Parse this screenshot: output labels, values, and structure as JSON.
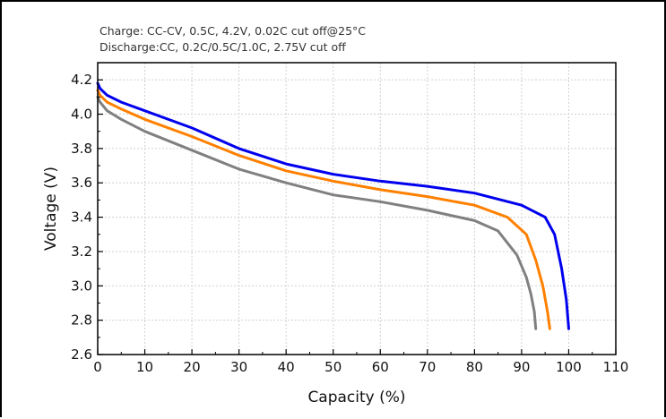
{
  "chart_data": {
    "type": "line",
    "annotations": [
      "Charge: CC-CV, 0.5C, 4.2V, 0.02C cut off@25°C",
      "Discharge:CC, 0.2C/0.5C/1.0C, 2.75V cut off"
    ],
    "xlabel": "Capacity (%)",
    "ylabel": "Voltage (V)",
    "xlim": [
      0,
      110
    ],
    "ylim": [
      2.6,
      4.3
    ],
    "xticks": [
      "0",
      "10",
      "20",
      "30",
      "40",
      "50",
      "60",
      "70",
      "80",
      "90",
      "100",
      "110"
    ],
    "yticks": [
      "2.6",
      "2.8",
      "3.0",
      "3.2",
      "3.4",
      "3.6",
      "3.8",
      "4.0",
      "4.2"
    ],
    "grid": true,
    "series": [
      {
        "color": "#0000ee",
        "points": [
          [
            0,
            4.18
          ],
          [
            0.5,
            4.15
          ],
          [
            2,
            4.11
          ],
          [
            5,
            4.07
          ],
          [
            10,
            4.02
          ],
          [
            20,
            3.92
          ],
          [
            30,
            3.8
          ],
          [
            40,
            3.71
          ],
          [
            50,
            3.65
          ],
          [
            60,
            3.61
          ],
          [
            70,
            3.58
          ],
          [
            80,
            3.54
          ],
          [
            90,
            3.47
          ],
          [
            95,
            3.4
          ],
          [
            97,
            3.3
          ],
          [
            98.5,
            3.1
          ],
          [
            99.5,
            2.92
          ],
          [
            100,
            2.75
          ]
        ]
      },
      {
        "color": "#ff8000",
        "points": [
          [
            0,
            4.14
          ],
          [
            0.5,
            4.11
          ],
          [
            2,
            4.07
          ],
          [
            5,
            4.03
          ],
          [
            10,
            3.97
          ],
          [
            20,
            3.87
          ],
          [
            30,
            3.76
          ],
          [
            40,
            3.67
          ],
          [
            50,
            3.61
          ],
          [
            60,
            3.56
          ],
          [
            70,
            3.52
          ],
          [
            80,
            3.47
          ],
          [
            87,
            3.4
          ],
          [
            91,
            3.3
          ],
          [
            93,
            3.15
          ],
          [
            94.5,
            3.0
          ],
          [
            95.5,
            2.85
          ],
          [
            96,
            2.75
          ]
        ]
      },
      {
        "color": "#808080",
        "points": [
          [
            0,
            4.1
          ],
          [
            0.5,
            4.07
          ],
          [
            2,
            4.02
          ],
          [
            5,
            3.97
          ],
          [
            10,
            3.9
          ],
          [
            20,
            3.79
          ],
          [
            30,
            3.68
          ],
          [
            40,
            3.6
          ],
          [
            50,
            3.53
          ],
          [
            60,
            3.49
          ],
          [
            70,
            3.44
          ],
          [
            80,
            3.38
          ],
          [
            85,
            3.32
          ],
          [
            89,
            3.18
          ],
          [
            91,
            3.05
          ],
          [
            92,
            2.95
          ],
          [
            92.7,
            2.85
          ],
          [
            93,
            2.75
          ]
        ]
      }
    ]
  }
}
